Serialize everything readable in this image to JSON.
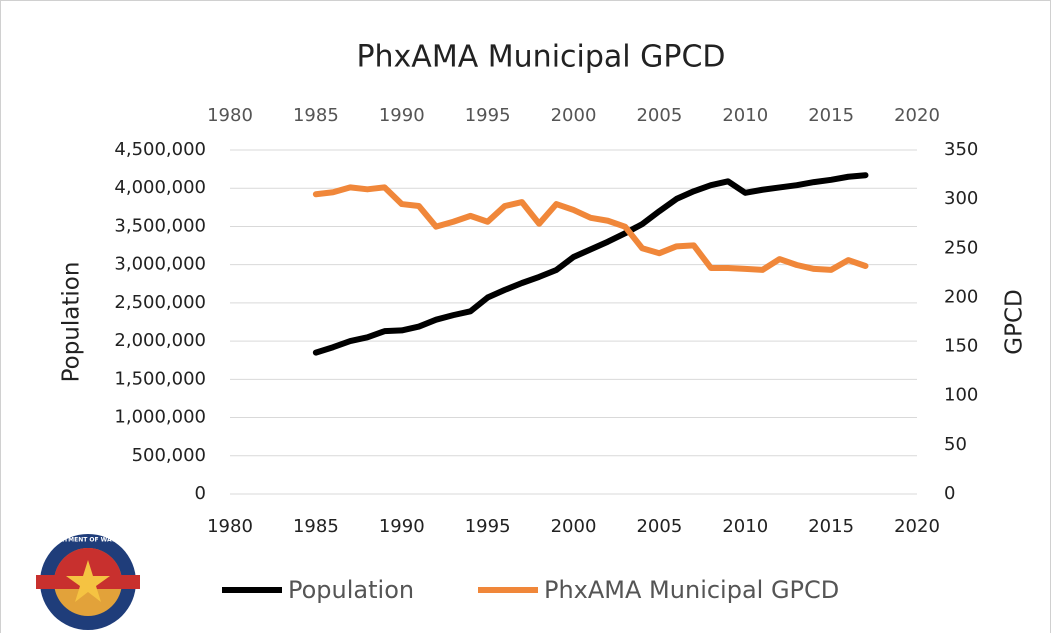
{
  "chart_data": {
    "type": "line",
    "title": "PhxAMA Municipal GPCD",
    "y_label": "Population",
    "y2_label": "GPCD",
    "logo_text": "ARIZONA DEPARTMENT OF WATER RESOURCES",
    "x": [
      1985,
      1986,
      1987,
      1988,
      1989,
      1990,
      1991,
      1992,
      1993,
      1994,
      1995,
      1996,
      1997,
      1998,
      1999,
      2000,
      2001,
      2002,
      2003,
      2004,
      2005,
      2006,
      2007,
      2008,
      2009,
      2010,
      2011,
      2012,
      2013,
      2014,
      2015,
      2016,
      2017
    ],
    "series": [
      {
        "name": "Population",
        "color": "#000000",
        "values": [
          1850000,
          1920000,
          2000000,
          2050000,
          2130000,
          2140000,
          2190000,
          2280000,
          2340000,
          2390000,
          2570000,
          2670000,
          2760000,
          2840000,
          2930000,
          3100000,
          3200000,
          3300000,
          3410000,
          3530000,
          3700000,
          3860000,
          3960000,
          4040000,
          4090000,
          3940000,
          3980000,
          4010000,
          4040000,
          4080000,
          4110000,
          4150000,
          4170000
        ]
      },
      {
        "name": "PhxAMA Municipal GPCD",
        "color": "#f0873a",
        "axis": "y2",
        "values": [
          305,
          307,
          312,
          310,
          312,
          295,
          293,
          272,
          277,
          283,
          277,
          293,
          297,
          275,
          295,
          289,
          281,
          278,
          272,
          250,
          245,
          252,
          253,
          230,
          230,
          229,
          228,
          239,
          233,
          229,
          228,
          238,
          232
        ]
      }
    ],
    "xlim": [
      1980,
      2020
    ],
    "xticks": [
      1980,
      1985,
      1990,
      1995,
      2000,
      2005,
      2010,
      2015,
      2020
    ],
    "ylim": [
      0,
      4500000
    ],
    "yticks": [
      0,
      {
        "value": 500000,
        "label": "500,000"
      },
      {
        "value": 1000000,
        "label": "1,000,000"
      },
      {
        "value": 1500000,
        "label": "1,500,000"
      },
      {
        "value": 2000000,
        "label": "2,000,000"
      },
      {
        "value": 2500000,
        "label": "2,500,000"
      },
      {
        "value": 3000000,
        "label": "3,000,000"
      },
      {
        "value": 3500000,
        "label": "3,500,000"
      },
      {
        "value": 4000000,
        "label": "4,000,000"
      },
      {
        "value": 4500000,
        "label": "4,500,000"
      }
    ],
    "y2lim": [
      0,
      350
    ],
    "y2ticks": [
      0,
      50,
      100,
      150,
      200,
      250,
      300,
      350
    ],
    "grid": true,
    "legend": "bottom"
  }
}
